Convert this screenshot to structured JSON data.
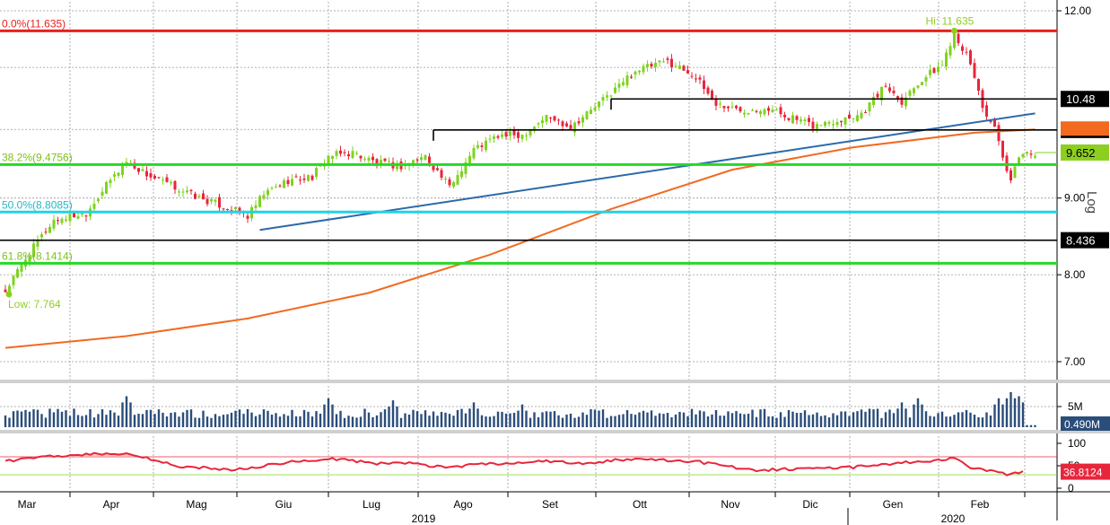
{
  "chart_data": {
    "type": "candlestick",
    "scale": "log",
    "scale_label": "Log",
    "ylim": [
      6.8,
      12.0
    ],
    "yticks": [
      "12.00",
      "9.00",
      "8.00",
      "7.00"
    ],
    "grid": true,
    "months": [
      "Mar",
      "Apr",
      "Mag",
      "Giu",
      "Lug",
      "Ago",
      "Set",
      "Ott",
      "Nov",
      "Dic",
      "Gen",
      "Feb"
    ],
    "years": [
      "2019",
      "2020"
    ],
    "close_path": [
      [
        0,
        7.8
      ],
      [
        5,
        8.2
      ],
      [
        12,
        8.7
      ],
      [
        20,
        8.8
      ],
      [
        26,
        9.25
      ],
      [
        30,
        9.52
      ],
      [
        36,
        9.3
      ],
      [
        42,
        9.15
      ],
      [
        48,
        9.0
      ],
      [
        56,
        8.85
      ],
      [
        60,
        8.75
      ],
      [
        64,
        9.05
      ],
      [
        70,
        9.25
      ],
      [
        76,
        9.3
      ],
      [
        80,
        9.6
      ],
      [
        86,
        9.65
      ],
      [
        92,
        9.5
      ],
      [
        98,
        9.45
      ],
      [
        104,
        9.6
      ],
      [
        110,
        9.15
      ],
      [
        116,
        9.7
      ],
      [
        122,
        9.9
      ],
      [
        128,
        9.92
      ],
      [
        134,
        10.2
      ],
      [
        140,
        10.05
      ],
      [
        146,
        10.35
      ],
      [
        152,
        10.7
      ],
      [
        156,
        10.95
      ],
      [
        164,
        11.1
      ],
      [
        170,
        10.9
      ],
      [
        176,
        10.4
      ],
      [
        182,
        10.3
      ],
      [
        188,
        10.35
      ],
      [
        194,
        10.2
      ],
      [
        200,
        10.05
      ],
      [
        206,
        10.15
      ],
      [
        212,
        10.25
      ],
      [
        218,
        10.7
      ],
      [
        222,
        10.45
      ],
      [
        226,
        10.75
      ],
      [
        232,
        11.05
      ],
      [
        235,
        11.62
      ],
      [
        238,
        11.2
      ],
      [
        240,
        10.85
      ],
      [
        242,
        10.35
      ],
      [
        245,
        10.0
      ],
      [
        247,
        9.55
      ],
      [
        249,
        9.2
      ],
      [
        251,
        9.62
      ],
      [
        255,
        9.65
      ]
    ],
    "volume": {
      "unit": "M",
      "ticks": [
        "5M"
      ],
      "last_label": "0.490M",
      "spikes": [
        [
          30,
          7.5
        ],
        [
          80,
          7.0
        ],
        [
          96,
          6.5
        ],
        [
          116,
          6.0
        ],
        [
          128,
          5.5
        ],
        [
          222,
          6.0
        ],
        [
          226,
          7.0
        ],
        [
          246,
          7.0
        ],
        [
          249,
          8.5
        ],
        [
          251,
          7.5
        ]
      ]
    },
    "rsi": {
      "ticks": [
        "100",
        "50",
        "0"
      ],
      "overbought": 70,
      "oversold": 30,
      "last_label": "36.8124",
      "points": [
        [
          0,
          60
        ],
        [
          10,
          70
        ],
        [
          20,
          75
        ],
        [
          30,
          78
        ],
        [
          36,
          65
        ],
        [
          42,
          50
        ],
        [
          50,
          45
        ],
        [
          56,
          40
        ],
        [
          64,
          50
        ],
        [
          72,
          60
        ],
        [
          82,
          65
        ],
        [
          92,
          55
        ],
        [
          100,
          55
        ],
        [
          110,
          45
        ],
        [
          118,
          55
        ],
        [
          126,
          55
        ],
        [
          134,
          60
        ],
        [
          144,
          55
        ],
        [
          150,
          62
        ],
        [
          156,
          65
        ],
        [
          164,
          62
        ],
        [
          172,
          58
        ],
        [
          178,
          50
        ],
        [
          186,
          40
        ],
        [
          192,
          42
        ],
        [
          200,
          45
        ],
        [
          208,
          45
        ],
        [
          214,
          50
        ],
        [
          220,
          55
        ],
        [
          226,
          60
        ],
        [
          232,
          62
        ],
        [
          235,
          70
        ],
        [
          238,
          50
        ],
        [
          242,
          40
        ],
        [
          246,
          35
        ],
        [
          249,
          30
        ],
        [
          252,
          36.8
        ]
      ]
    },
    "moving_average_200": {
      "color": "#f26a20",
      "points": [
        [
          0,
          7.15
        ],
        [
          30,
          7.28
        ],
        [
          60,
          7.48
        ],
        [
          90,
          7.78
        ],
        [
          120,
          8.25
        ],
        [
          150,
          8.85
        ],
        [
          180,
          9.4
        ],
        [
          210,
          9.73
        ],
        [
          240,
          9.95
        ],
        [
          255,
          10.0
        ]
      ]
    },
    "trendline": {
      "color": "#2b6aa8",
      "from": [
        63,
        8.57
      ],
      "to": [
        255,
        10.25
      ]
    },
    "horizontal_levels": [
      {
        "value": 11.635,
        "color": "#e8201c",
        "label": "0.0%(11.635)"
      },
      {
        "value": 9.4756,
        "color": "#27d827",
        "label": "38.2%(9.4756)"
      },
      {
        "value": 8.8085,
        "color": "#1fd4e6",
        "label": "50.0%(8.8085)"
      },
      {
        "value": 8.1414,
        "color": "#27d827",
        "label": "61.8%(8.1414)"
      },
      {
        "value": 10.48,
        "color": "#000000",
        "from_day": 150,
        "tag": "10.48"
      },
      {
        "value": 9.992,
        "color": "#000000",
        "from_day": 106,
        "tag": "9.992"
      },
      {
        "value": 8.436,
        "color": "#000000",
        "tag": "8.436"
      }
    ],
    "price_tags": [
      {
        "value": 9.652,
        "label": "9.652",
        "bg": "#8ccf1f"
      }
    ],
    "annotations": {
      "high": {
        "label": "Hi: 11.635",
        "value": 11.635,
        "day": 235
      },
      "low": {
        "label": "Low: 7.764",
        "value": 7.764,
        "day": 0
      }
    }
  }
}
